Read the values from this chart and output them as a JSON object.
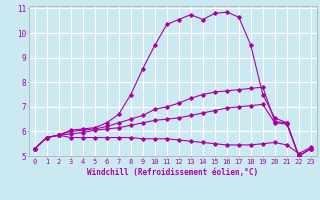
{
  "xlabel": "Windchill (Refroidissement éolien,°C)",
  "background_color": "#cbe9f0",
  "grid_color": "#ffffff",
  "line_color": "#aa00aa",
  "x_hours": [
    0,
    1,
    2,
    3,
    4,
    5,
    6,
    7,
    8,
    9,
    10,
    11,
    12,
    13,
    14,
    15,
    16,
    17,
    18,
    19,
    20,
    21,
    22,
    23
  ],
  "series": [
    [
      5.3,
      5.75,
      5.85,
      5.75,
      5.75,
      5.75,
      5.75,
      5.75,
      5.75,
      5.7,
      5.7,
      5.7,
      5.65,
      5.6,
      5.55,
      5.5,
      5.45,
      5.45,
      5.45,
      5.5,
      5.55,
      5.45,
      5.1,
      5.35
    ],
    [
      5.3,
      5.75,
      5.85,
      5.9,
      5.95,
      6.05,
      6.1,
      6.15,
      6.25,
      6.35,
      6.45,
      6.5,
      6.55,
      6.65,
      6.75,
      6.85,
      6.95,
      7.0,
      7.05,
      7.1,
      6.35,
      6.3,
      5.0,
      5.3
    ],
    [
      5.3,
      5.75,
      5.85,
      6.0,
      6.05,
      6.1,
      6.2,
      6.35,
      6.5,
      6.65,
      6.9,
      7.0,
      7.15,
      7.35,
      7.5,
      7.6,
      7.65,
      7.7,
      7.75,
      7.8,
      6.4,
      6.35,
      5.0,
      5.3
    ],
    [
      5.3,
      5.75,
      5.85,
      6.05,
      6.1,
      6.15,
      6.35,
      6.7,
      7.5,
      8.55,
      9.5,
      10.35,
      10.55,
      10.75,
      10.55,
      10.8,
      10.85,
      10.65,
      9.5,
      7.5,
      6.55,
      6.35,
      5.0,
      5.3
    ]
  ],
  "ylim": [
    5,
    11
  ],
  "xlim": [
    -0.5,
    23.5
  ],
  "yticks": [
    5,
    6,
    7,
    8,
    9,
    10,
    11
  ],
  "xticks": [
    0,
    1,
    2,
    3,
    4,
    5,
    6,
    7,
    8,
    9,
    10,
    11,
    12,
    13,
    14,
    15,
    16,
    17,
    18,
    19,
    20,
    21,
    22,
    23
  ],
  "xlabel_fontsize": 5.5,
  "tick_fontsize": 5.0,
  "ytick_fontsize": 5.5
}
